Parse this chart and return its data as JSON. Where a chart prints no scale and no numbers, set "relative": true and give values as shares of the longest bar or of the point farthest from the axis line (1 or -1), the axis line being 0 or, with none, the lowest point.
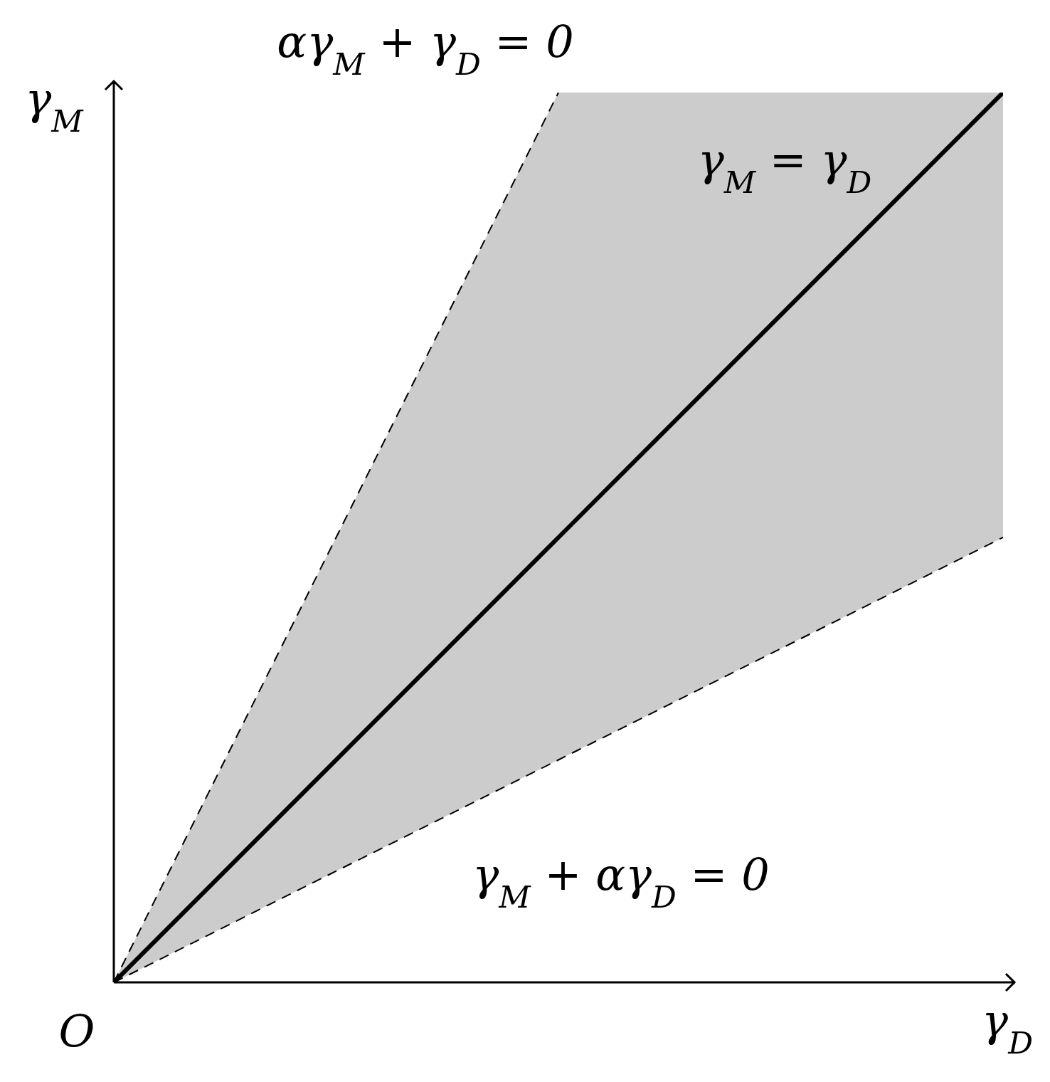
{
  "chart_data": {
    "type": "line",
    "relative": true,
    "xlabel": "γ$_{D}$",
    "ylabel": "γ$_{M}$",
    "categories": [
      null,
      null,
      null
    ],
    "series": [
      {
        "color": "#000000",
        "line_style": "solid",
        "values": [
          0,
          0.5,
          1
        ],
        "lower": [
          0,
          0.25,
          0.5
        ],
        "upper": [
          0,
          1,
          1
        ]
      },
      {
        "color": "#000000",
        "line_style": "dashed",
        "values": [
          0,
          1,
          null
        ]
      },
      {
        "color": "#000000",
        "line_style": "dashed",
        "values": [
          0,
          0.25,
          0.5
        ]
      }
    ],
    "annotations": [
      "αγ$_{M}$ + γ$_{D}$ = 0",
      "γ$_{M}$ = γ$_{D}$",
      "γ$_{M}$ + αγ$_{D}$ = 0",
      "O"
    ]
  }
}
